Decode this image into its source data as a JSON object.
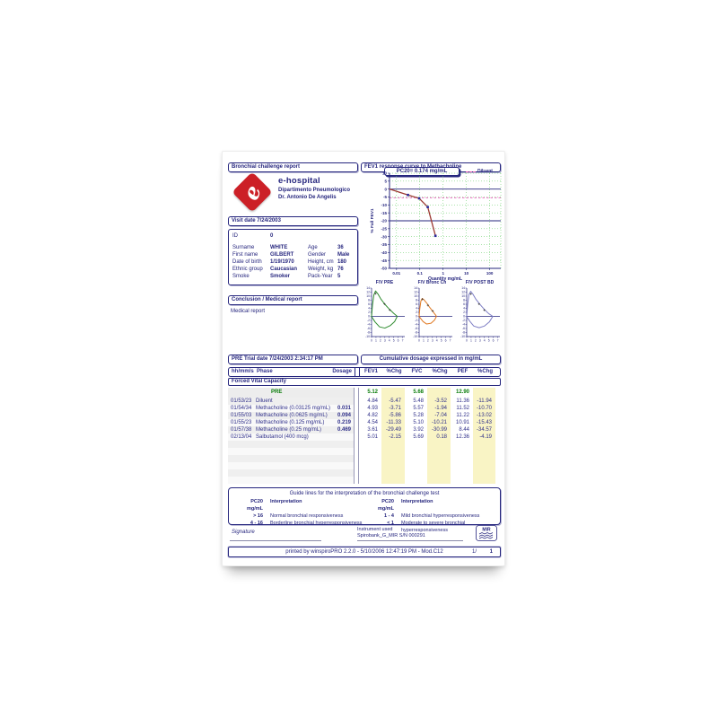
{
  "page": {
    "header_left": "Bronchial challenge report",
    "header_right": "FEV1 response curve to Methacholine"
  },
  "hospital": {
    "name": "e-hospital",
    "dept": "Dipartimento Pneumologico",
    "doctor": "Dr. Antonio De Angelis"
  },
  "visit": {
    "label": "Visit date 7/24/2003"
  },
  "patient": {
    "id_row": {
      "label": "ID",
      "value": "0"
    },
    "rows": [
      {
        "left_label": "Surname",
        "left_value": "WHITE",
        "right_label": "Age",
        "right_value": "36"
      },
      {
        "left_label": "First name",
        "left_value": "GILBERT",
        "right_label": "Gender",
        "right_value": "Male"
      },
      {
        "left_label": "Date of birth",
        "left_value": "1/19/1970",
        "right_label": "Height, cm",
        "right_value": "180"
      },
      {
        "left_label": "Ethnic group",
        "left_value": "Caucasian",
        "right_label": "Weight, kg",
        "right_value": "76"
      },
      {
        "left_label": "Smoke",
        "left_value": "Smoker",
        "right_label": "Pack-Year",
        "right_value": "5"
      }
    ]
  },
  "conclusion": {
    "title": "Conclusion / Medical report",
    "body": "Medical report"
  },
  "trial": {
    "bar_left": "PRE Trial date 7/24/2003   2:34:17 PM",
    "bar_right": "Cumulative dosage expressed in mg/mL",
    "columns": [
      "hh/mm/ss",
      "Phase",
      "Dosage",
      "FEV1",
      "%Chg",
      "FVC",
      "%Chg",
      "PEF",
      "%Chg"
    ],
    "section": "Forced Vital Capacity",
    "pre_row": {
      "label": "PRE",
      "fev1": "5.12",
      "fvc": "5.68",
      "pef": "12.90"
    },
    "rows": [
      {
        "time": "01/53/23",
        "phase": "Diluent",
        "dosage": "",
        "fev1": "4.84",
        "fev1chg": "-5.47",
        "fvc": "5.48",
        "fvcchg": "-3.52",
        "pef": "11.36",
        "pefchg": "-11.94"
      },
      {
        "time": "01/54/34",
        "phase": "Methacholine (0.03125 mg/mL)",
        "dosage": "0.031",
        "fev1": "4.93",
        "fev1chg": "-3.71",
        "fvc": "5.57",
        "fvcchg": "-1.94",
        "pef": "11.52",
        "pefchg": "-10.70"
      },
      {
        "time": "01/55/03",
        "phase": "Methacholine (0.0625 mg/mL)",
        "dosage": "0.094",
        "fev1": "4.82",
        "fev1chg": "-5.86",
        "fvc": "5.28",
        "fvcchg": "-7.04",
        "pef": "11.22",
        "pefchg": "-13.02"
      },
      {
        "time": "01/55/23",
        "phase": "Methacholine (0.125 mg/mL)",
        "dosage": "0.219",
        "fev1": "4.54",
        "fev1chg": "-11.33",
        "fvc": "5.10",
        "fvcchg": "-10.21",
        "pef": "10.91",
        "pefchg": "-15.43"
      },
      {
        "time": "01/57/38",
        "phase": "Methacholine (0.25 mg/mL)",
        "dosage": "0.469",
        "fev1": "3.61",
        "fev1chg": "-29.49",
        "fvc": "3.92",
        "fvcchg": "-30.99",
        "pef": "8.44",
        "pefchg": "-34.57"
      },
      {
        "time": "02/13/04",
        "phase": "Salbutamol (400 mcg)",
        "dosage": "",
        "fev1": "5.01",
        "fev1chg": "-2.15",
        "fvc": "5.69",
        "fvcchg": "0.18",
        "pef": "12.36",
        "pefchg": "-4.19"
      }
    ],
    "empty_rows": 6
  },
  "guide": {
    "title": "Guide lines for the interpretation of the bronchial challenge test",
    "col_header": [
      "PC20 mg/mL",
      "Interpretation"
    ],
    "left_rows": [
      [
        "> 16",
        "Normal bronchial responsiveness"
      ],
      [
        "4 - 16",
        "Borderline bronchial hyperresponsiveness"
      ]
    ],
    "right_rows": [
      [
        "1 - 4",
        "Mild bronchial hyperresponsiveness"
      ],
      [
        "< 1",
        "Moderate to severe bronchial hyperresponsiveness"
      ]
    ]
  },
  "footer": {
    "signature": "Signature",
    "instrument_label": "Instrument used",
    "instrument_value": "Spirobank_G_MIR S/N 000291",
    "mir_label": "MIR",
    "printed": "printed by winspiroPRO 2.2.0 - 5/10/2006 12:47:19 PM - Mod.C12",
    "page_no": "1/",
    "page_total": "1"
  },
  "colors": {
    "navy": "#26267e",
    "curve": "#9c3a32",
    "marker": "#2a2a9a",
    "grid_green": "#57c957",
    "diluent_pink": "#e85bb8",
    "highlight_yellow": "#f9f4c5",
    "pre_green": "#0b7d0b",
    "logo_red": "#cc2027"
  },
  "chart_data": [
    {
      "type": "line",
      "id": "methacholine-response",
      "title": "FEV1 response curve to Methacholine",
      "pc20_label": "PC20= 0.174  mg/mL",
      "legend": [
        {
          "label": "Diluent",
          "color": "#e85bb8",
          "position": "top-right"
        }
      ],
      "xlabel": "Quantity mg/mL",
      "ylabel": "% Fall FEV1",
      "x_scale": "log",
      "xlim": [
        0.005,
        300
      ],
      "x_ticks": [
        0.01,
        0.1,
        1,
        10,
        100
      ],
      "x_tick_labels": [
        "0.01",
        "0.1",
        "1",
        "10",
        "100"
      ],
      "ylim": [
        -50,
        10
      ],
      "y_ticks": [
        10,
        5,
        0,
        -5,
        -10,
        -15,
        -20,
        -25,
        -30,
        -35,
        -40,
        -45,
        -50
      ],
      "grid": true,
      "reference_lines": [
        {
          "y": 0,
          "style": "solid",
          "color": "#26267e",
          "name": "baseline"
        },
        {
          "y": -20,
          "style": "solid",
          "color": "#26267e",
          "name": "20% fall threshold"
        },
        {
          "y": -5.47,
          "style": "dashed",
          "color": "#e85bb8",
          "name": "Diluent level"
        }
      ],
      "series": [
        {
          "name": "Methacholine dose-response",
          "color": "#9c3a32",
          "marker": "square",
          "marker_color": "#2a2a9a",
          "x": [
            0.005,
            0.031,
            0.094,
            0.219,
            0.469
          ],
          "y": [
            0,
            -3.71,
            -5.86,
            -11.33,
            -29.49
          ]
        }
      ]
    },
    {
      "type": "line",
      "id": "flow-volume-loops",
      "ylim": [
        -10,
        14
      ],
      "y_ticks": [
        14,
        12,
        10,
        8,
        6,
        4,
        2,
        0,
        -2,
        -4,
        -6,
        -8,
        -10
      ],
      "x_ticks": [
        0,
        1,
        2,
        3,
        4,
        5,
        6,
        7
      ],
      "panels": [
        {
          "title": "F/V PRE",
          "color": "#2e8b2e",
          "loop": [
            [
              0,
              0
            ],
            [
              0.2,
              5.5
            ],
            [
              0.5,
              10.5
            ],
            [
              0.9,
              12.6
            ],
            [
              1.4,
              11.2
            ],
            [
              2.1,
              8.6
            ],
            [
              3,
              6
            ],
            [
              4,
              3.6
            ],
            [
              5,
              1.5
            ],
            [
              5.8,
              0
            ],
            [
              5.2,
              -2.6
            ],
            [
              4.2,
              -4.6
            ],
            [
              3,
              -5.8
            ],
            [
              1.8,
              -5.2
            ],
            [
              0.8,
              -2.8
            ],
            [
              0.2,
              -0.8
            ],
            [
              0,
              0
            ]
          ],
          "markers": [
            [
              0.9,
              11.3
            ],
            [
              2.9,
              6.2
            ],
            [
              4.1,
              3.2
            ]
          ]
        },
        {
          "title": "F/V Bronc Ch",
          "color": "#e07820",
          "loop": [
            [
              0,
              0
            ],
            [
              0.15,
              3.8
            ],
            [
              0.4,
              7.6
            ],
            [
              0.7,
              8.9
            ],
            [
              1.1,
              8.2
            ],
            [
              1.7,
              6.6
            ],
            [
              2.4,
              4.4
            ],
            [
              3.1,
              2.4
            ],
            [
              3.8,
              0.4
            ],
            [
              3.9,
              0
            ],
            [
              3.5,
              -1.8
            ],
            [
              2.7,
              -3.4
            ],
            [
              1.7,
              -3.8
            ],
            [
              0.9,
              -2.6
            ],
            [
              0.3,
              -0.9
            ],
            [
              0,
              0
            ]
          ],
          "markers": [
            [
              0.75,
              8.5
            ],
            [
              2,
              5.5
            ],
            [
              3.05,
              2.7
            ]
          ]
        },
        {
          "title": "F/V POST BD",
          "color": "#7d7dc4",
          "loop": [
            [
              0,
              0
            ],
            [
              0.2,
              5.5
            ],
            [
              0.5,
              10.8
            ],
            [
              0.9,
              12.4
            ],
            [
              1.4,
              11
            ],
            [
              2.1,
              8.4
            ],
            [
              3,
              5.9
            ],
            [
              4,
              3.4
            ],
            [
              5,
              1.3
            ],
            [
              5.9,
              0
            ],
            [
              5.1,
              -2.8
            ],
            [
              4,
              -4.8
            ],
            [
              2.8,
              -5.6
            ],
            [
              1.6,
              -4.8
            ],
            [
              0.7,
              -2.4
            ],
            [
              0.15,
              -0.7
            ],
            [
              0,
              0
            ]
          ],
          "markers": [
            [
              0.95,
              11.1
            ],
            [
              2.8,
              6.1
            ],
            [
              4,
              3.1
            ]
          ]
        }
      ]
    }
  ]
}
